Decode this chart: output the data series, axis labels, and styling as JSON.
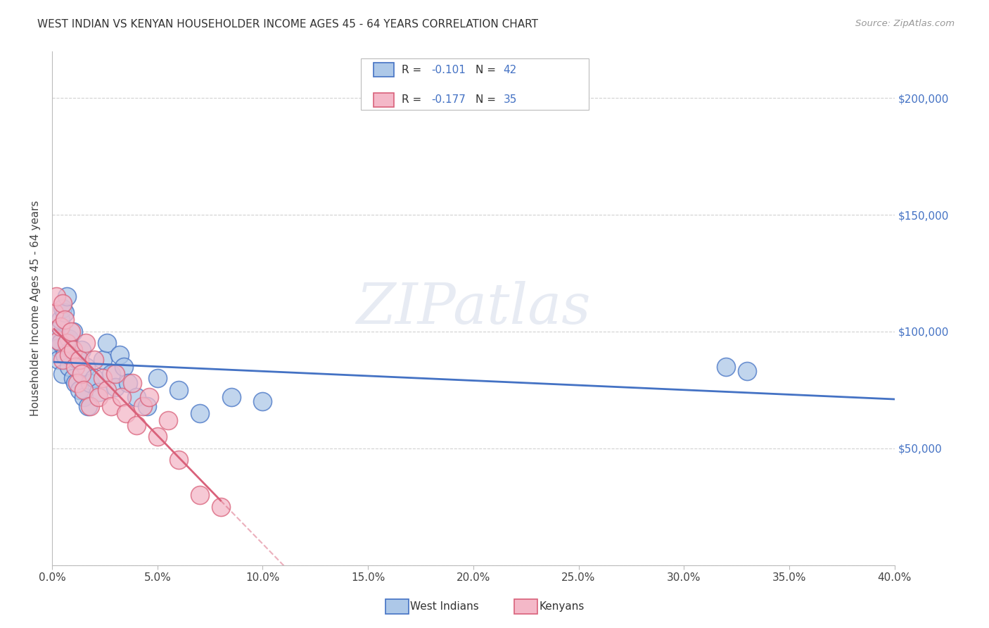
{
  "title": "WEST INDIAN VS KENYAN HOUSEHOLDER INCOME AGES 45 - 64 YEARS CORRELATION CHART",
  "source": "Source: ZipAtlas.com",
  "xlabel_ticks": [
    "0.0%",
    "5.0%",
    "10.0%",
    "15.0%",
    "20.0%",
    "25.0%",
    "30.0%",
    "35.0%",
    "40.0%"
  ],
  "xlabel_vals": [
    0.0,
    0.05,
    0.1,
    0.15,
    0.2,
    0.25,
    0.3,
    0.35,
    0.4
  ],
  "ylabel_right_labels": [
    "$50,000",
    "$100,000",
    "$150,000",
    "$200,000"
  ],
  "ylabel_right_vals": [
    50000,
    100000,
    150000,
    200000
  ],
  "ylabel": "Householder Income Ages 45 - 64 years",
  "west_indian_r": -0.101,
  "west_indian_n": 42,
  "kenyan_r": -0.177,
  "kenyan_n": 35,
  "west_indian_color": "#adc8e8",
  "west_indian_line_color": "#4472c4",
  "kenyan_color": "#f4b8c8",
  "kenyan_line_color": "#d9617a",
  "legend_label_wi": "West Indians",
  "legend_label_k": "Kenyans",
  "west_indians_x": [
    0.001,
    0.002,
    0.003,
    0.003,
    0.004,
    0.004,
    0.005,
    0.005,
    0.006,
    0.006,
    0.007,
    0.008,
    0.008,
    0.009,
    0.01,
    0.01,
    0.011,
    0.012,
    0.013,
    0.014,
    0.015,
    0.016,
    0.017,
    0.018,
    0.02,
    0.022,
    0.024,
    0.026,
    0.028,
    0.03,
    0.032,
    0.034,
    0.036,
    0.04,
    0.045,
    0.05,
    0.06,
    0.07,
    0.085,
    0.1,
    0.32,
    0.33
  ],
  "west_indians_y": [
    100000,
    97000,
    93000,
    88000,
    105000,
    95000,
    110000,
    82000,
    108000,
    90000,
    115000,
    97000,
    85000,
    92000,
    80000,
    100000,
    78000,
    88000,
    75000,
    92000,
    72000,
    85000,
    68000,
    78000,
    80000,
    74000,
    88000,
    95000,
    82000,
    76000,
    90000,
    85000,
    78000,
    72000,
    68000,
    80000,
    75000,
    65000,
    72000,
    70000,
    85000,
    83000
  ],
  "kenyans_x": [
    0.001,
    0.002,
    0.003,
    0.004,
    0.005,
    0.005,
    0.006,
    0.007,
    0.008,
    0.009,
    0.01,
    0.011,
    0.012,
    0.013,
    0.014,
    0.015,
    0.016,
    0.018,
    0.02,
    0.022,
    0.024,
    0.026,
    0.028,
    0.03,
    0.033,
    0.035,
    0.038,
    0.04,
    0.043,
    0.046,
    0.05,
    0.055,
    0.06,
    0.07,
    0.08
  ],
  "kenyans_y": [
    108000,
    115000,
    96000,
    102000,
    112000,
    88000,
    105000,
    95000,
    90000,
    100000,
    92000,
    85000,
    78000,
    88000,
    82000,
    75000,
    95000,
    68000,
    88000,
    72000,
    80000,
    75000,
    68000,
    82000,
    72000,
    65000,
    78000,
    60000,
    68000,
    72000,
    55000,
    62000,
    45000,
    30000,
    25000
  ],
  "background_color": "#ffffff",
  "grid_color": "#cccccc",
  "xlim": [
    0.0,
    0.4
  ],
  "ylim": [
    0,
    220000
  ],
  "wi_line_xmin": 0.001,
  "wi_line_xmax": 0.4,
  "kn_line_xmin": 0.001,
  "kn_line_xmax": 0.4
}
